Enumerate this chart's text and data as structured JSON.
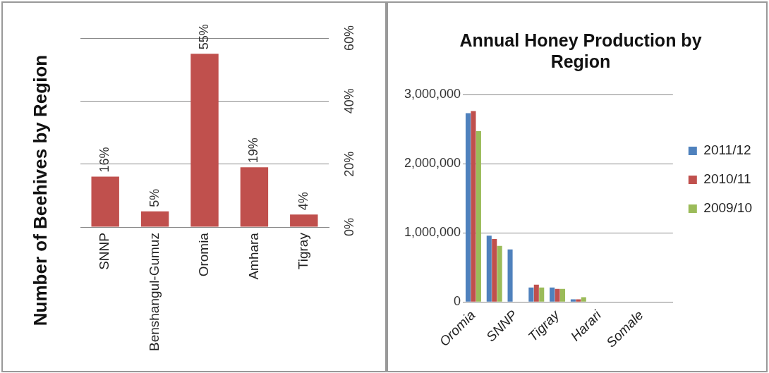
{
  "chart_data": [
    {
      "type": "bar",
      "title": "Number of Beehives by Region",
      "categories": [
        "SNNP",
        "Benshangul-Gumuz",
        "Oromia",
        "Amhara",
        "Tigray"
      ],
      "values": [
        16,
        5,
        55,
        19,
        4
      ],
      "value_labels": [
        "16%",
        "5%",
        "55%",
        "19%",
        "4%"
      ],
      "color": "#c0504d",
      "ylim": [
        0,
        60
      ],
      "yticks": [
        {
          "value": 0,
          "label": "0%"
        },
        {
          "value": 20,
          "label": "20%"
        },
        {
          "value": 40,
          "label": "40%"
        },
        {
          "value": 60,
          "label": "60%"
        }
      ],
      "grid": "y"
    },
    {
      "type": "bar",
      "title": "Annual Honey Production by Region",
      "categories": [
        "Oromia",
        null,
        "SNNP",
        null,
        "Tigray",
        null,
        "Harari",
        null,
        "Somale",
        null
      ],
      "series": [
        {
          "name": "2011/12",
          "color": "#4f81bd",
          "values": [
            2730000,
            960000,
            760000,
            210000,
            210000,
            40000,
            null,
            null,
            null,
            null
          ]
        },
        {
          "name": "2010/11",
          "color": "#c0504d",
          "values": [
            2760000,
            910000,
            null,
            250000,
            190000,
            40000,
            null,
            null,
            null,
            null
          ]
        },
        {
          "name": "2009/10",
          "color": "#9bbb59",
          "values": [
            2470000,
            810000,
            null,
            210000,
            190000,
            70000,
            null,
            null,
            null,
            null
          ]
        }
      ],
      "ylim": [
        0,
        3000000
      ],
      "yticks": [
        {
          "value": 0,
          "label": "0"
        },
        {
          "value": 1000000,
          "label": "1,000,000"
        },
        {
          "value": 2000000,
          "label": "2,000,000"
        },
        {
          "value": 3000000,
          "label": "3,000,000"
        }
      ],
      "grid": "y",
      "legend": "right"
    }
  ]
}
